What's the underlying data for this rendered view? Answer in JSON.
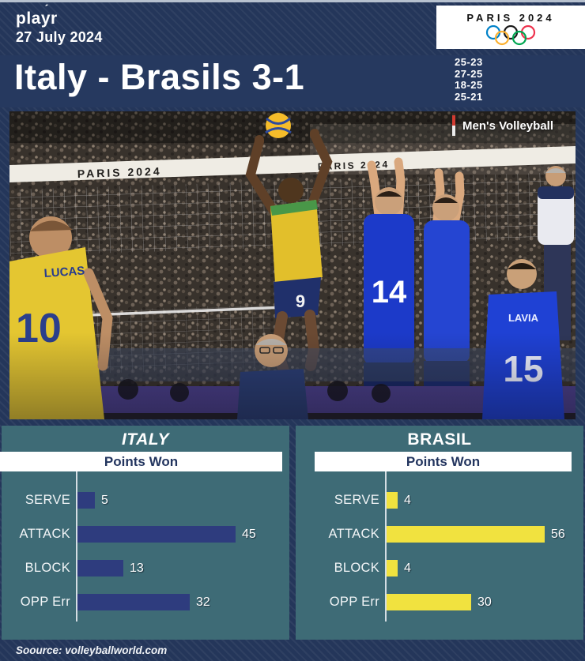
{
  "header": {
    "logo": "playr",
    "logo_accent": "ˊ",
    "date": "27 July 2024"
  },
  "badge": {
    "title": "PARIS 2024",
    "ring_colors": [
      "#0081c8",
      "#1a1a1a",
      "#ee334e",
      "#fcb131",
      "#00a651"
    ]
  },
  "title": {
    "text": "Italy - Brasils 3-1"
  },
  "set_scores": {
    "s1": "25-23",
    "s2": "27-25",
    "s3": "18-25",
    "s4": "25-21"
  },
  "photo": {
    "label": "Men's Volleyball",
    "net_banner": "PARIS 2024",
    "net_banner_2": "PARIS 2024",
    "left_player_name": "LUCAS",
    "left_player_number": "10",
    "spiker_number": "9",
    "blocker_number": "14",
    "right_player_name": "LAVIA",
    "right_player_number": "15"
  },
  "colors": {
    "accent_red": "#d23b31",
    "italy_bar": "#2e3c7e",
    "brasil_bar": "#f1e23f",
    "panel_teal": "#3e6b76",
    "background_navy": "#24365a"
  },
  "footer": {
    "source": "Soource: volleyballworld.com"
  },
  "chart_data": [
    {
      "type": "bar",
      "orientation": "horizontal",
      "title": "ITALY",
      "subtitle": "Points Won",
      "categories": [
        "SERVE",
        "ATTACK",
        "BLOCK",
        "OPP Err"
      ],
      "values": [
        5,
        45,
        13,
        32
      ],
      "bar_color": "#2e3c7e",
      "xlim": [
        0,
        45
      ],
      "grid": false,
      "legend": "none"
    },
    {
      "type": "bar",
      "orientation": "horizontal",
      "title": "BRASIL",
      "subtitle": "Points Won",
      "categories": [
        "SERVE",
        "ATTACK",
        "BLOCK",
        "OPP Err"
      ],
      "values": [
        4,
        56,
        4,
        30
      ],
      "bar_color": "#f1e23f",
      "xlim": [
        0,
        56
      ],
      "grid": false,
      "legend": "none"
    }
  ]
}
